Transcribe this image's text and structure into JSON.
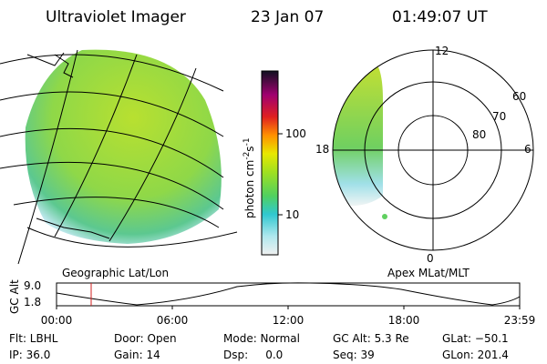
{
  "header": {
    "title": "Ultraviolet Imager",
    "date": "23 Jan 07",
    "time": "01:49:07 UT"
  },
  "colorbar": {
    "unit": [
      "photon cm",
      "-2",
      "s",
      "-1"
    ],
    "ticks": [
      "100",
      "10"
    ]
  },
  "polar": {
    "mlt": [
      "12",
      "18",
      "6",
      "0"
    ],
    "mlat": [
      "60",
      "70",
      "80"
    ]
  },
  "orbit": {
    "left_label": "Geographic Lat/Lon",
    "right_label": "Apex MLat/MLT",
    "axis_label": "GC Alt",
    "alt_ticks": [
      "9.0",
      "1.8"
    ],
    "times": [
      "00:00",
      "06:00",
      "12:00",
      "18:00",
      "23:59"
    ]
  },
  "footer": {
    "rows": [
      [
        "Flt: LBHL",
        "Door: Open",
        "Mode: Normal",
        "GC Alt: 5.3 Re",
        "GLat: −50.1"
      ],
      [
        "IP: 36.0",
        "Gain: 14",
        "Dsp:     0.0",
        "Seq: 39",
        "GLon: 201.4"
      ]
    ]
  }
}
